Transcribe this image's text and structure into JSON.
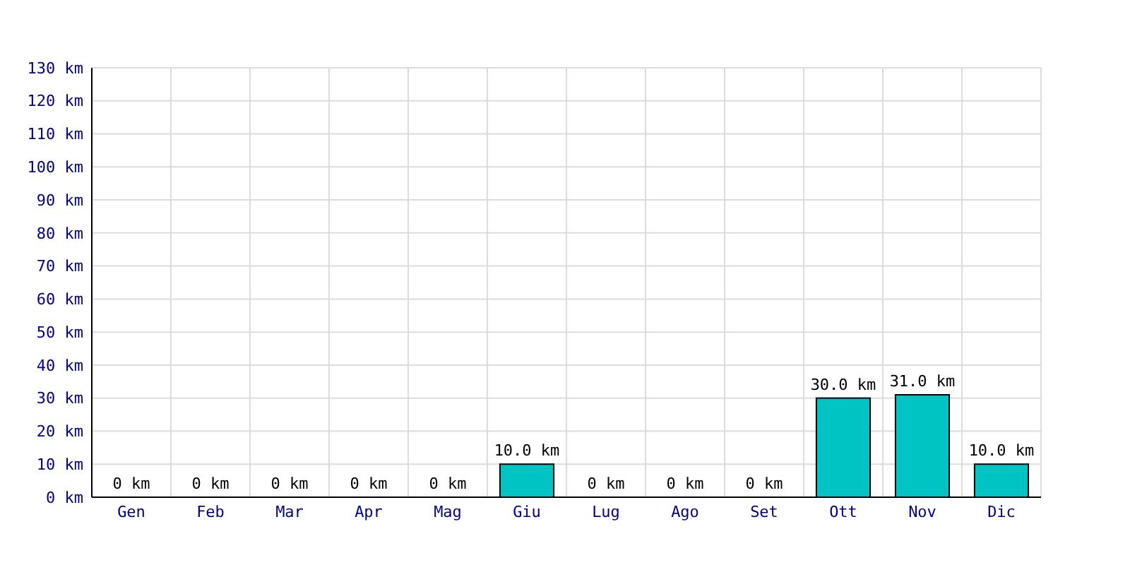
{
  "chart_data": {
    "type": "bar",
    "categories": [
      "Gen",
      "Feb",
      "Mar",
      "Apr",
      "Mag",
      "Giu",
      "Lug",
      "Ago",
      "Set",
      "Ott",
      "Nov",
      "Dic"
    ],
    "values": [
      0,
      0,
      0,
      0,
      0,
      10,
      0,
      0,
      0,
      30,
      31,
      10
    ],
    "value_labels": [
      "0 km",
      "0 km",
      "0 km",
      "0 km",
      "0 km",
      "10.0 km",
      "0 km",
      "0 km",
      "0 km",
      "30.0 km",
      "31.0 km",
      "10.0 km"
    ],
    "color": "#00c4c4",
    "ylim": [
      0,
      130
    ],
    "yticks": [
      {
        "value": 0,
        "label": "0 km"
      },
      {
        "value": 10,
        "label": "10 km"
      },
      {
        "value": 20,
        "label": "20 km"
      },
      {
        "value": 30,
        "label": "30 km"
      },
      {
        "value": 40,
        "label": "40 km"
      },
      {
        "value": 50,
        "label": "50 km"
      },
      {
        "value": 60,
        "label": "60 km"
      },
      {
        "value": 70,
        "label": "70 km"
      },
      {
        "value": 80,
        "label": "80 km"
      },
      {
        "value": 90,
        "label": "90 km"
      },
      {
        "value": 100,
        "label": "100 km"
      },
      {
        "value": 110,
        "label": "110 km"
      },
      {
        "value": 120,
        "label": "120 km"
      },
      {
        "value": 130,
        "label": "130 km"
      }
    ],
    "grid": true
  }
}
